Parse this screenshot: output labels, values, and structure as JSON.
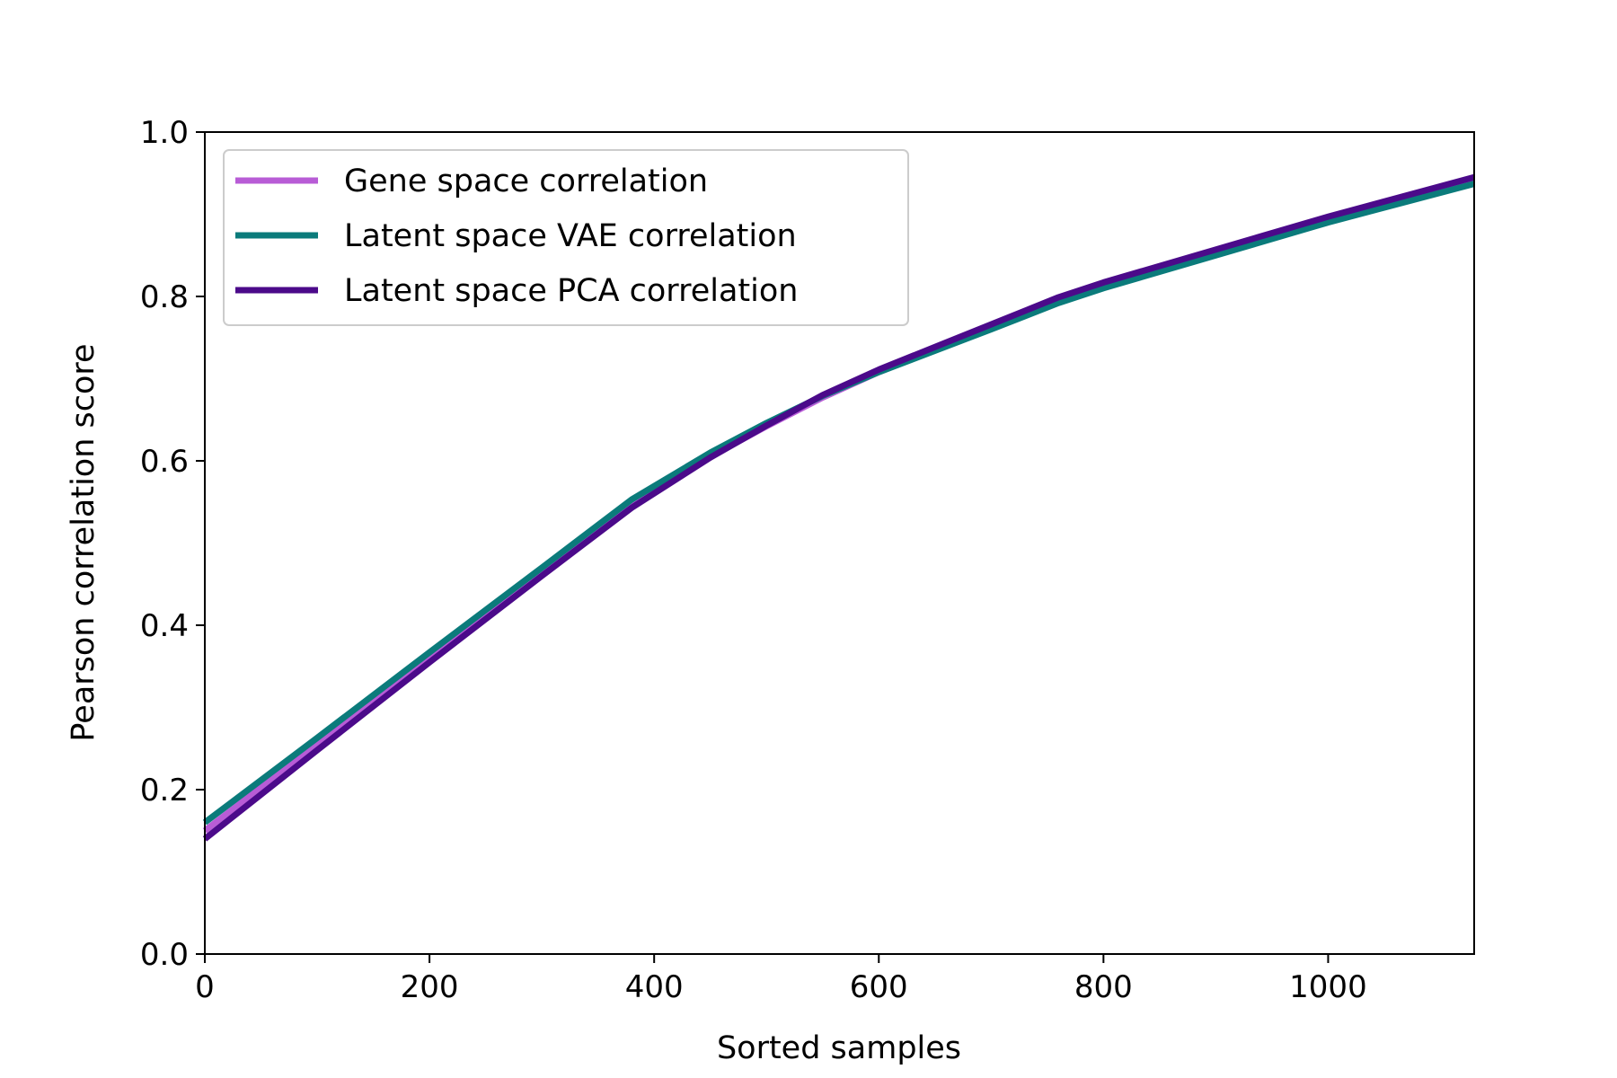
{
  "chart_data": {
    "type": "line",
    "title": "",
    "xlabel": "Sorted samples",
    "ylabel": "Pearson correlation score",
    "xlim": [
      0,
      1130
    ],
    "ylim": [
      0.0,
      1.0
    ],
    "xticks": [
      0,
      200,
      400,
      600,
      800,
      1000
    ],
    "xtick_labels": [
      "0",
      "200",
      "400",
      "600",
      "800",
      "1000"
    ],
    "yticks": [
      0.0,
      0.2,
      0.4,
      0.6,
      0.8,
      1.0
    ],
    "ytick_labels": [
      "0.0",
      "0.2",
      "0.4",
      "0.6",
      "0.8",
      "1.0"
    ],
    "grid": false,
    "legend_position": "top-left",
    "series": [
      {
        "name": "Gene space correlation",
        "color": "#b85cd6",
        "x": [
          0,
          100,
          200,
          300,
          380,
          450,
          500,
          550,
          600,
          700,
          760,
          800,
          900,
          1000,
          1130
        ],
        "y": [
          0.15,
          0.255,
          0.36,
          0.465,
          0.548,
          0.605,
          0.642,
          0.677,
          0.708,
          0.762,
          0.795,
          0.813,
          0.853,
          0.893,
          0.94
        ]
      },
      {
        "name": "Latent space VAE correlation",
        "color": "#0b7b7b",
        "x": [
          0,
          100,
          200,
          300,
          380,
          450,
          500,
          550,
          600,
          700,
          760,
          800,
          900,
          1000,
          1130
        ],
        "y": [
          0.16,
          0.263,
          0.367,
          0.47,
          0.553,
          0.61,
          0.646,
          0.679,
          0.708,
          0.76,
          0.792,
          0.81,
          0.85,
          0.89,
          0.937
        ]
      },
      {
        "name": "Latent space PCA correlation",
        "color": "#4b0a8a",
        "x": [
          0,
          100,
          200,
          300,
          380,
          450,
          500,
          550,
          600,
          700,
          760,
          800,
          900,
          1000,
          1130
        ],
        "y": [
          0.14,
          0.248,
          0.355,
          0.46,
          0.543,
          0.604,
          0.643,
          0.68,
          0.711,
          0.766,
          0.799,
          0.817,
          0.857,
          0.897,
          0.945
        ]
      }
    ]
  }
}
